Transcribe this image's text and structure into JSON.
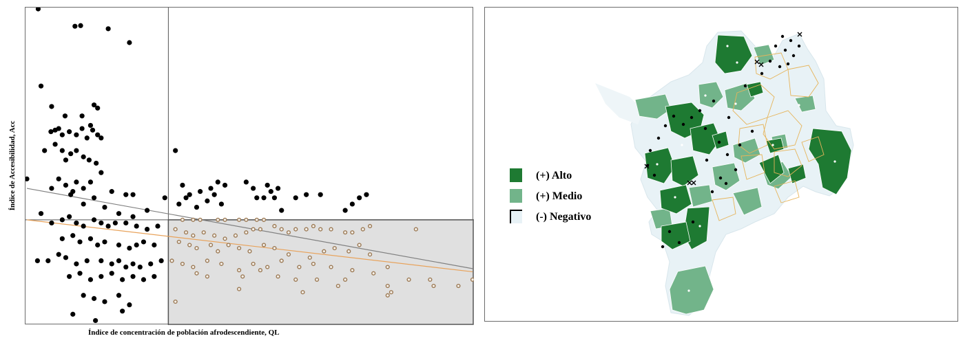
{
  "chart_data": {
    "type": "scatter",
    "xlabel": "Índice de concentración de población afrodescendiente, QL",
    "ylabel": "Índice de Accesibilidad, Acc",
    "xlim": [
      0,
      6.3
    ],
    "ylim": [
      0,
      1.0
    ],
    "quadrant_split": {
      "x": 2.0,
      "y": 0.33
    },
    "grid": false,
    "colors": {
      "points": "#000000",
      "ring_points": "#9c7a55",
      "regression_gray": "#808080",
      "regression_orange": "#e8a25a",
      "shaded_quadrant": "#e0e0e0"
    },
    "series": [
      {
        "marker": "filled-black",
        "points": [
          [
            0.16,
            1.0
          ],
          [
            0.68,
            0.945
          ],
          [
            0.76,
            0.947
          ],
          [
            1.15,
            0.937
          ],
          [
            1.45,
            0.893
          ],
          [
            0.2,
            0.755
          ],
          [
            0.35,
            0.69
          ],
          [
            0.54,
            0.66
          ],
          [
            0.78,
            0.66
          ],
          [
            0.95,
            0.695
          ],
          [
            1.0,
            0.685
          ],
          [
            0.34,
            0.61
          ],
          [
            0.4,
            0.615
          ],
          [
            0.45,
            0.62
          ],
          [
            0.5,
            0.6
          ],
          [
            0.6,
            0.61
          ],
          [
            0.7,
            0.6
          ],
          [
            0.78,
            0.62
          ],
          [
            0.85,
            0.59
          ],
          [
            0.9,
            0.63
          ],
          [
            0.93,
            0.615
          ],
          [
            1.0,
            0.6
          ],
          [
            1.05,
            0.59
          ],
          [
            0.25,
            0.55
          ],
          [
            0.4,
            0.57
          ],
          [
            0.5,
            0.55
          ],
          [
            0.55,
            0.52
          ],
          [
            0.62,
            0.54
          ],
          [
            0.7,
            0.55
          ],
          [
            0.8,
            0.53
          ],
          [
            0.88,
            0.52
          ],
          [
            0.98,
            0.51
          ],
          [
            1.05,
            0.48
          ],
          [
            0.45,
            0.46
          ],
          [
            0.55,
            0.44
          ],
          [
            0.62,
            0.41
          ],
          [
            0.7,
            0.45
          ],
          [
            0.8,
            0.43
          ],
          [
            0.9,
            0.45
          ],
          [
            1.2,
            0.42
          ],
          [
            1.4,
            0.41
          ],
          [
            1.5,
            0.41
          ],
          [
            0.0,
            0.46
          ],
          [
            0.35,
            0.43
          ],
          [
            0.65,
            0.42
          ],
          [
            0.8,
            0.38
          ],
          [
            0.95,
            0.4
          ],
          [
            1.1,
            0.37
          ],
          [
            1.3,
            0.35
          ],
          [
            1.5,
            0.34
          ],
          [
            1.7,
            0.36
          ],
          [
            1.95,
            0.4
          ],
          [
            2.1,
            0.55
          ],
          [
            0.2,
            0.35
          ],
          [
            0.35,
            0.32
          ],
          [
            0.5,
            0.33
          ],
          [
            0.6,
            0.34
          ],
          [
            0.7,
            0.32
          ],
          [
            0.8,
            0.31
          ],
          [
            0.95,
            0.33
          ],
          [
            1.05,
            0.32
          ],
          [
            1.15,
            0.31
          ],
          [
            1.25,
            0.32
          ],
          [
            1.4,
            0.32
          ],
          [
            1.55,
            0.31
          ],
          [
            1.7,
            0.3
          ],
          [
            1.85,
            0.31
          ],
          [
            0.5,
            0.27
          ],
          [
            0.65,
            0.28
          ],
          [
            0.75,
            0.26
          ],
          [
            0.9,
            0.27
          ],
          [
            1.0,
            0.25
          ],
          [
            1.1,
            0.26
          ],
          [
            1.3,
            0.25
          ],
          [
            1.45,
            0.24
          ],
          [
            1.55,
            0.25
          ],
          [
            1.65,
            0.26
          ],
          [
            1.8,
            0.25
          ],
          [
            0.15,
            0.2
          ],
          [
            0.3,
            0.2
          ],
          [
            0.45,
            0.22
          ],
          [
            0.55,
            0.21
          ],
          [
            0.7,
            0.19
          ],
          [
            0.85,
            0.2
          ],
          [
            1.05,
            0.2
          ],
          [
            1.2,
            0.19
          ],
          [
            1.3,
            0.2
          ],
          [
            1.4,
            0.18
          ],
          [
            1.5,
            0.19
          ],
          [
            1.6,
            0.18
          ],
          [
            1.75,
            0.19
          ],
          [
            1.9,
            0.2
          ],
          [
            0.6,
            0.15
          ],
          [
            0.75,
            0.16
          ],
          [
            0.9,
            0.14
          ],
          [
            1.05,
            0.15
          ],
          [
            1.2,
            0.16
          ],
          [
            1.35,
            0.14
          ],
          [
            1.5,
            0.15
          ],
          [
            1.65,
            0.14
          ],
          [
            1.8,
            0.15
          ],
          [
            0.8,
            0.09
          ],
          [
            0.95,
            0.08
          ],
          [
            1.1,
            0.07
          ],
          [
            1.3,
            0.09
          ],
          [
            1.45,
            0.06
          ],
          [
            0.65,
            0.03
          ],
          [
            0.97,
            0.01
          ],
          [
            1.35,
            0.04
          ],
          [
            2.2,
            0.44
          ],
          [
            2.3,
            0.41
          ],
          [
            2.45,
            0.42
          ],
          [
            2.6,
            0.43
          ],
          [
            2.7,
            0.45
          ],
          [
            2.8,
            0.44
          ],
          [
            2.15,
            0.38
          ],
          [
            2.25,
            0.4
          ],
          [
            2.4,
            0.37
          ],
          [
            2.55,
            0.39
          ],
          [
            2.65,
            0.41
          ],
          [
            2.75,
            0.38
          ],
          [
            3.1,
            0.45
          ],
          [
            3.2,
            0.43
          ],
          [
            3.25,
            0.4
          ],
          [
            3.35,
            0.4
          ],
          [
            3.4,
            0.44
          ],
          [
            3.45,
            0.42
          ],
          [
            3.5,
            0.4
          ],
          [
            3.55,
            0.43
          ],
          [
            3.6,
            0.36
          ],
          [
            3.8,
            0.4
          ],
          [
            3.95,
            0.41
          ],
          [
            4.15,
            0.41
          ],
          [
            4.6,
            0.38
          ],
          [
            4.7,
            0.4
          ],
          [
            4.8,
            0.41
          ],
          [
            4.5,
            0.36
          ]
        ]
      },
      {
        "marker": "hollow-brown-ring",
        "points": [
          [
            2.2,
            0.33
          ],
          [
            2.35,
            0.33
          ],
          [
            2.45,
            0.33
          ],
          [
            2.7,
            0.33
          ],
          [
            2.8,
            0.33
          ],
          [
            3.0,
            0.33
          ],
          [
            3.1,
            0.33
          ],
          [
            3.25,
            0.33
          ],
          [
            3.35,
            0.33
          ],
          [
            2.1,
            0.3
          ],
          [
            2.25,
            0.29
          ],
          [
            2.35,
            0.28
          ],
          [
            2.5,
            0.29
          ],
          [
            2.65,
            0.28
          ],
          [
            2.8,
            0.27
          ],
          [
            2.95,
            0.28
          ],
          [
            3.1,
            0.29
          ],
          [
            3.2,
            0.3
          ],
          [
            3.3,
            0.3
          ],
          [
            3.5,
            0.31
          ],
          [
            3.6,
            0.3
          ],
          [
            3.7,
            0.29
          ],
          [
            3.8,
            0.3
          ],
          [
            3.95,
            0.3
          ],
          [
            4.05,
            0.31
          ],
          [
            4.15,
            0.3
          ],
          [
            4.3,
            0.3
          ],
          [
            4.5,
            0.29
          ],
          [
            4.6,
            0.29
          ],
          [
            4.75,
            0.3
          ],
          [
            4.85,
            0.31
          ],
          [
            5.5,
            0.3
          ],
          [
            2.15,
            0.26
          ],
          [
            2.3,
            0.25
          ],
          [
            2.4,
            0.24
          ],
          [
            2.6,
            0.25
          ],
          [
            2.7,
            0.23
          ],
          [
            2.85,
            0.25
          ],
          [
            3.0,
            0.24
          ],
          [
            3.15,
            0.23
          ],
          [
            3.35,
            0.25
          ],
          [
            3.5,
            0.24
          ],
          [
            3.7,
            0.22
          ],
          [
            4.0,
            0.21
          ],
          [
            4.2,
            0.23
          ],
          [
            4.35,
            0.24
          ],
          [
            4.55,
            0.23
          ],
          [
            4.7,
            0.25
          ],
          [
            4.85,
            0.22
          ],
          [
            2.05,
            0.2
          ],
          [
            2.2,
            0.19
          ],
          [
            2.35,
            0.18
          ],
          [
            2.55,
            0.2
          ],
          [
            2.75,
            0.19
          ],
          [
            3.0,
            0.17
          ],
          [
            3.2,
            0.19
          ],
          [
            3.4,
            0.18
          ],
          [
            3.6,
            0.2
          ],
          [
            3.85,
            0.18
          ],
          [
            4.05,
            0.19
          ],
          [
            4.3,
            0.18
          ],
          [
            4.6,
            0.17
          ],
          [
            4.9,
            0.16
          ],
          [
            5.1,
            0.18
          ],
          [
            2.4,
            0.16
          ],
          [
            2.55,
            0.15
          ],
          [
            3.05,
            0.15
          ],
          [
            3.3,
            0.17
          ],
          [
            3.55,
            0.15
          ],
          [
            3.8,
            0.14
          ],
          [
            4.1,
            0.14
          ],
          [
            4.5,
            0.14
          ],
          [
            5.4,
            0.14
          ],
          [
            5.75,
            0.12
          ],
          [
            5.7,
            0.14
          ],
          [
            6.1,
            0.12
          ],
          [
            6.3,
            0.14
          ],
          [
            2.1,
            0.07
          ],
          [
            5.1,
            0.09
          ],
          [
            5.15,
            0.1
          ],
          [
            5.1,
            0.12
          ],
          [
            4.4,
            0.12
          ],
          [
            3.0,
            0.11
          ],
          [
            3.9,
            0.1
          ]
        ]
      }
    ],
    "regression_lines": [
      {
        "color": "gray",
        "x": [
          0,
          6.3
        ],
        "y": [
          0.43,
          0.175
        ]
      },
      {
        "color": "orange",
        "x": [
          0,
          6.3
        ],
        "y": [
          0.33,
          0.165
        ]
      }
    ]
  },
  "map": {
    "colors": {
      "alto": "#1e7a32",
      "medio": "#72b48a",
      "negativo": "#e8f2f6",
      "outline": "#e6b45a"
    },
    "legend": [
      {
        "label": "(+) Alto",
        "color": "#1e7a32"
      },
      {
        "label": "(+) Medio",
        "color": "#72b48a"
      },
      {
        "label": "(-) Negativo",
        "color": "#e8f2f6"
      }
    ]
  }
}
